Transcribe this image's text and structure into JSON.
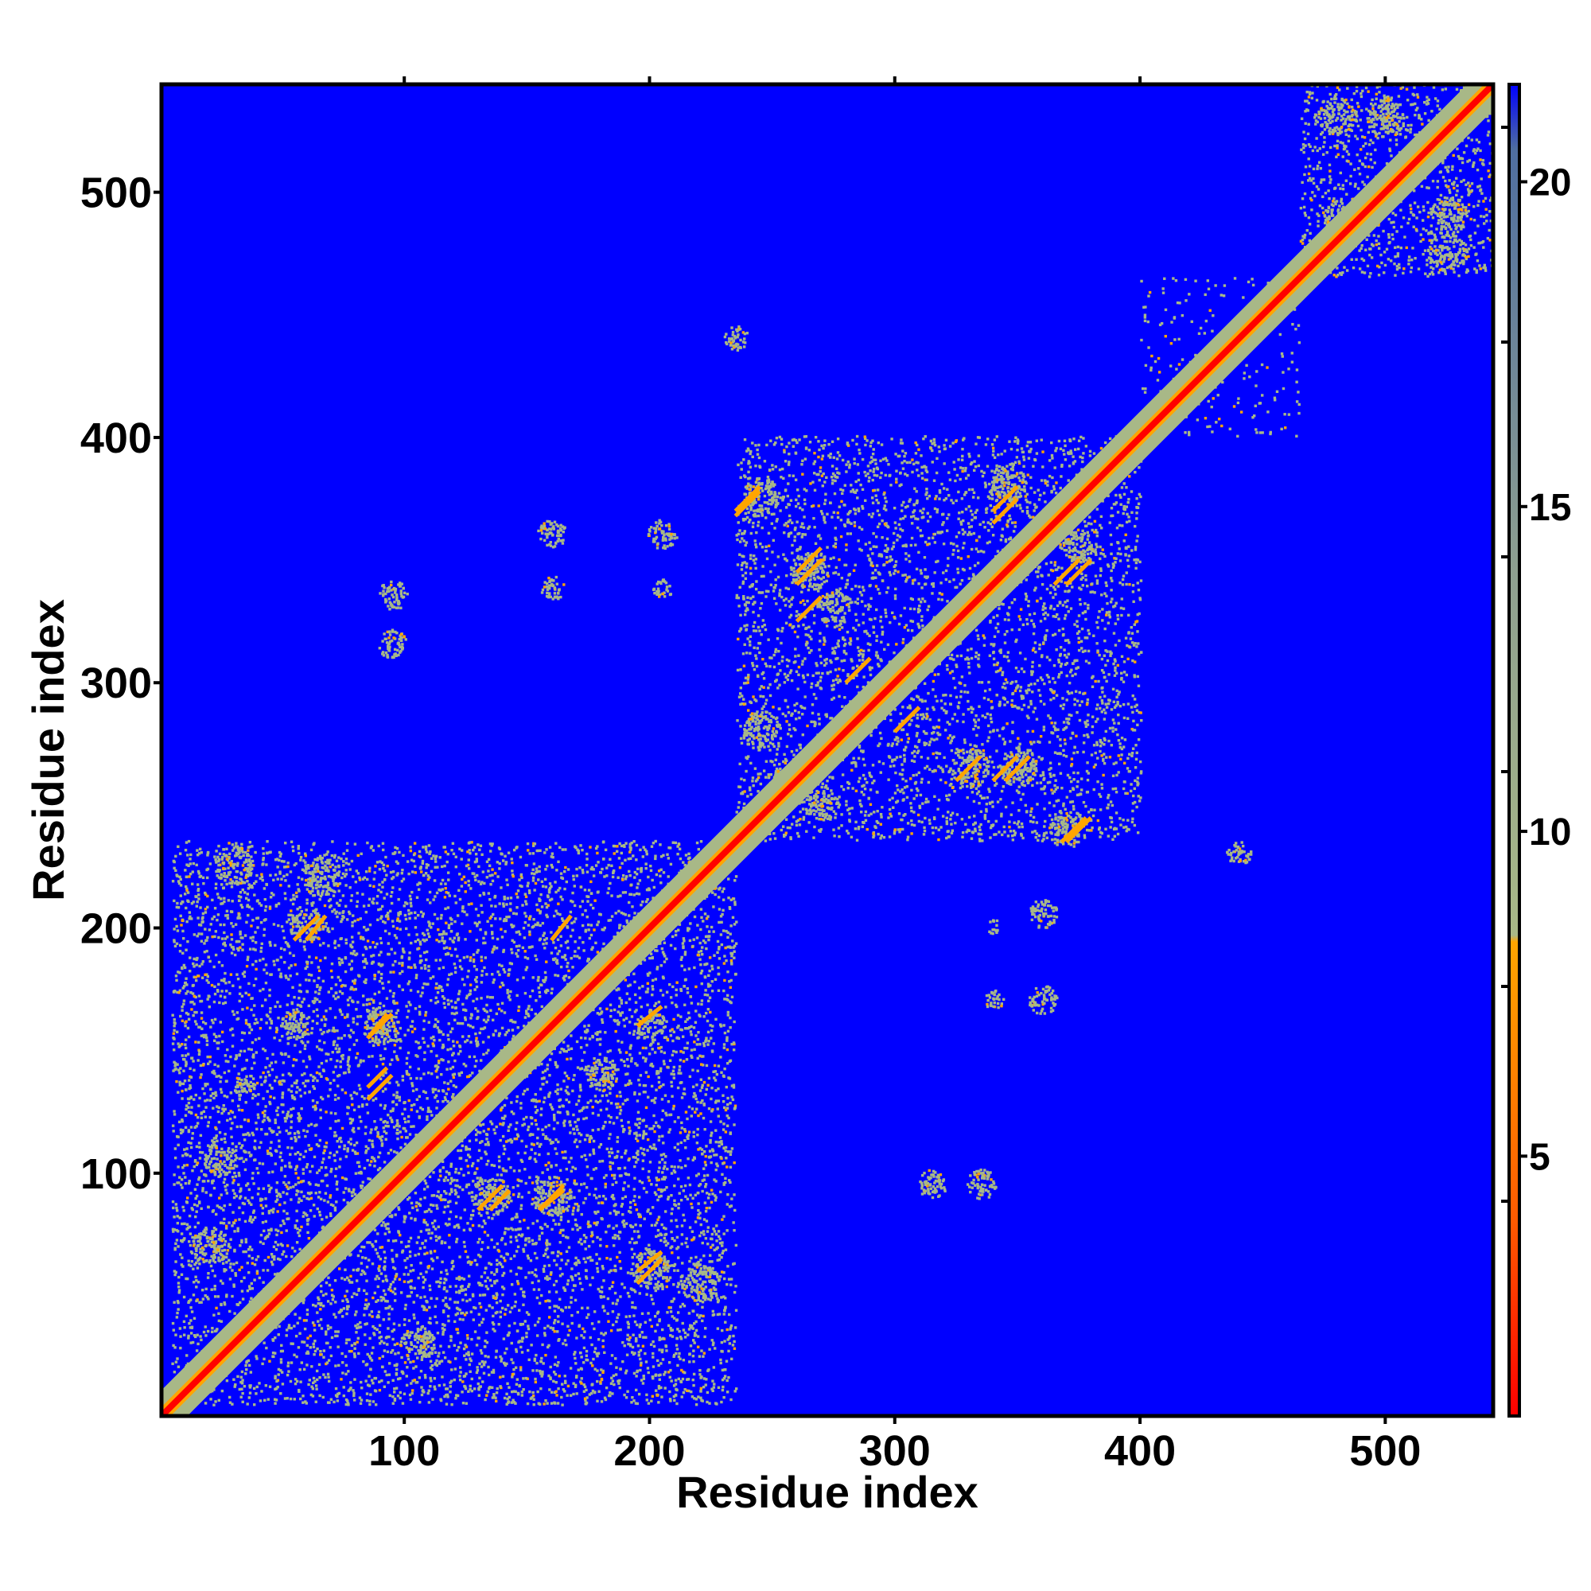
{
  "chart_data": {
    "type": "heatmap",
    "description_kind": "residue distance map",
    "xlabel": "Residue index",
    "ylabel": "Residue index",
    "xlim": [
      1,
      544
    ],
    "ylim": [
      1,
      544
    ],
    "x_ticks": [
      100,
      200,
      300,
      400,
      500
    ],
    "y_ticks": [
      100,
      200,
      300,
      400,
      500
    ],
    "x_tick_labels": [
      "100",
      "200",
      "300",
      "400",
      "500"
    ],
    "y_tick_labels": [
      "100",
      "200",
      "300",
      "400",
      "500"
    ],
    "colorbar": {
      "range": [
        1,
        21.5
      ],
      "ticks": [
        5,
        10,
        15,
        20
      ],
      "tick_labels": [
        "5",
        "10",
        "15",
        "20"
      ],
      "stops": [
        {
          "value": 1,
          "color": "#ff0000"
        },
        {
          "value": 4,
          "color": "#ff5a00"
        },
        {
          "value": 8.3,
          "color": "#ffa500"
        },
        {
          "value": 8.4,
          "color": "#a8b887"
        },
        {
          "value": 14,
          "color": "#8e9f90"
        },
        {
          "value": 20.5,
          "color": "#4f6ea0"
        },
        {
          "value": 21.5,
          "color": "#0000ff"
        }
      ]
    },
    "background_color": "#0000ff",
    "diagonal": {
      "core_color": "#ff0000",
      "edge_color": "#ffa500",
      "halo_color": "#a8b887"
    },
    "contact_color": "#a8b887",
    "close_contact_color": "#ffa500",
    "blocks": [
      {
        "x0": 5,
        "x1": 235,
        "y0": 5,
        "y1": 235,
        "density": 0.16
      },
      {
        "x0": 235,
        "x1": 400,
        "y0": 235,
        "y1": 400,
        "density": 0.15
      },
      {
        "x0": 400,
        "x1": 465,
        "y0": 400,
        "y1": 465,
        "density": 0.05
      },
      {
        "x0": 465,
        "x1": 544,
        "y0": 465,
        "y1": 544,
        "density": 0.15
      }
    ],
    "contact_patches": [
      {
        "x": 30,
        "y": 225,
        "r": 8
      },
      {
        "x": 65,
        "y": 220,
        "r": 8
      },
      {
        "x": 60,
        "y": 200,
        "r": 7
      },
      {
        "x": 90,
        "y": 160,
        "r": 8
      },
      {
        "x": 55,
        "y": 160,
        "r": 6
      },
      {
        "x": 25,
        "y": 105,
        "r": 7
      },
      {
        "x": 35,
        "y": 135,
        "r": 5
      },
      {
        "x": 20,
        "y": 70,
        "r": 8
      },
      {
        "x": 135,
        "y": 90,
        "r": 8
      },
      {
        "x": 160,
        "y": 90,
        "r": 8
      },
      {
        "x": 200,
        "y": 60,
        "r": 8
      },
      {
        "x": 220,
        "y": 55,
        "r": 8
      },
      {
        "x": 105,
        "y": 30,
        "r": 7
      },
      {
        "x": 180,
        "y": 140,
        "r": 7
      },
      {
        "x": 200,
        "y": 160,
        "r": 6
      },
      {
        "x": 245,
        "y": 280,
        "r": 8
      },
      {
        "x": 255,
        "y": 260,
        "r": 7
      },
      {
        "x": 270,
        "y": 250,
        "r": 7
      },
      {
        "x": 245,
        "y": 375,
        "r": 8
      },
      {
        "x": 265,
        "y": 345,
        "r": 8
      },
      {
        "x": 275,
        "y": 330,
        "r": 7
      },
      {
        "x": 330,
        "y": 265,
        "r": 8
      },
      {
        "x": 350,
        "y": 265,
        "r": 8
      },
      {
        "x": 370,
        "y": 240,
        "r": 8
      },
      {
        "x": 345,
        "y": 380,
        "r": 8
      },
      {
        "x": 360,
        "y": 360,
        "r": 7
      },
      {
        "x": 375,
        "y": 355,
        "r": 7
      },
      {
        "x": 480,
        "y": 530,
        "r": 8
      },
      {
        "x": 500,
        "y": 530,
        "r": 8
      },
      {
        "x": 525,
        "y": 490,
        "r": 8
      },
      {
        "x": 525,
        "y": 475,
        "r": 8
      },
      {
        "x": 480,
        "y": 490,
        "r": 6
      },
      {
        "x": 235,
        "y": 440,
        "r": 5
      },
      {
        "x": 440,
        "y": 230,
        "r": 5
      },
      {
        "x": 95,
        "y": 315,
        "r": 6
      },
      {
        "x": 95,
        "y": 335,
        "r": 6
      },
      {
        "x": 160,
        "y": 360,
        "r": 6
      },
      {
        "x": 160,
        "y": 338,
        "r": 5
      },
      {
        "x": 205,
        "y": 360,
        "r": 6
      },
      {
        "x": 205,
        "y": 338,
        "r": 4
      },
      {
        "x": 315,
        "y": 95,
        "r": 6
      },
      {
        "x": 335,
        "y": 95,
        "r": 6
      },
      {
        "x": 360,
        "y": 205,
        "r": 6
      },
      {
        "x": 360,
        "y": 170,
        "r": 6
      },
      {
        "x": 340,
        "y": 170,
        "r": 4
      },
      {
        "x": 340,
        "y": 200,
        "r": 3
      }
    ],
    "close_contact_segments": [
      {
        "x0": 60,
        "y0": 195,
        "x1": 68,
        "y1": 205
      },
      {
        "x0": 85,
        "y0": 155,
        "x1": 93,
        "y1": 165
      },
      {
        "x0": 85,
        "y0": 135,
        "x1": 93,
        "y1": 143
      },
      {
        "x0": 130,
        "y0": 85,
        "x1": 140,
        "y1": 95
      },
      {
        "x0": 155,
        "y0": 85,
        "x1": 165,
        "y1": 95
      },
      {
        "x0": 195,
        "y0": 55,
        "x1": 205,
        "y1": 65
      },
      {
        "x0": 160,
        "y0": 195,
        "x1": 168,
        "y1": 205
      },
      {
        "x0": 195,
        "y0": 160,
        "x1": 205,
        "y1": 168
      },
      {
        "x0": 235,
        "y0": 370,
        "x1": 245,
        "y1": 380
      },
      {
        "x0": 260,
        "y0": 340,
        "x1": 270,
        "y1": 350
      },
      {
        "x0": 325,
        "y0": 260,
        "x1": 335,
        "y1": 270
      },
      {
        "x0": 345,
        "y0": 260,
        "x1": 355,
        "y1": 270
      },
      {
        "x0": 368,
        "y0": 235,
        "x1": 378,
        "y1": 245
      },
      {
        "x0": 340,
        "y0": 370,
        "x1": 350,
        "y1": 380
      },
      {
        "x0": 365,
        "y0": 340,
        "x1": 375,
        "y1": 350
      },
      {
        "x0": 280,
        "y0": 300,
        "x1": 290,
        "y1": 310
      },
      {
        "x0": 300,
        "y0": 280,
        "x1": 310,
        "y1": 290
      }
    ]
  }
}
